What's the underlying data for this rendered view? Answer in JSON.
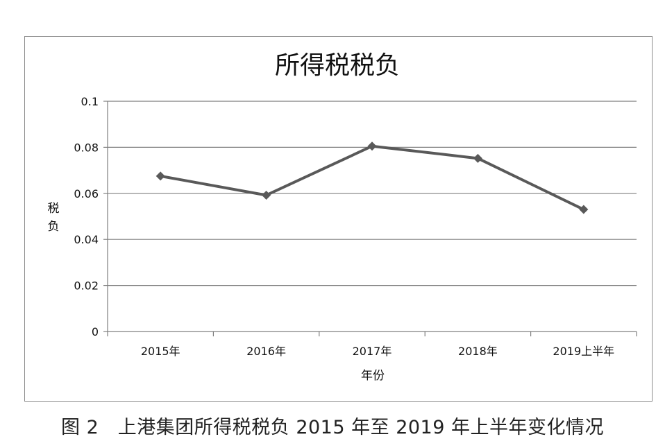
{
  "chart_data": {
    "type": "line",
    "title": "所得税税负",
    "xlabel": "年份",
    "ylabel": "税负",
    "categories": [
      "2015年",
      "2016年",
      "2017年",
      "2018年",
      "2019上半年"
    ],
    "series": [
      {
        "values": [
          0.0675,
          0.0592,
          0.0805,
          0.0752,
          0.053
        ]
      }
    ],
    "ylim": [
      0,
      0.1
    ],
    "yticks": [
      "0",
      "0.02",
      "0.04",
      "0.06",
      "0.08",
      "0.1"
    ],
    "grid": true,
    "legend": "none",
    "line_color": "#595959",
    "marker": "diamond"
  },
  "figure_caption": "图 2　上港集团所得税税负 2015 年至 2019 年上半年变化情况"
}
